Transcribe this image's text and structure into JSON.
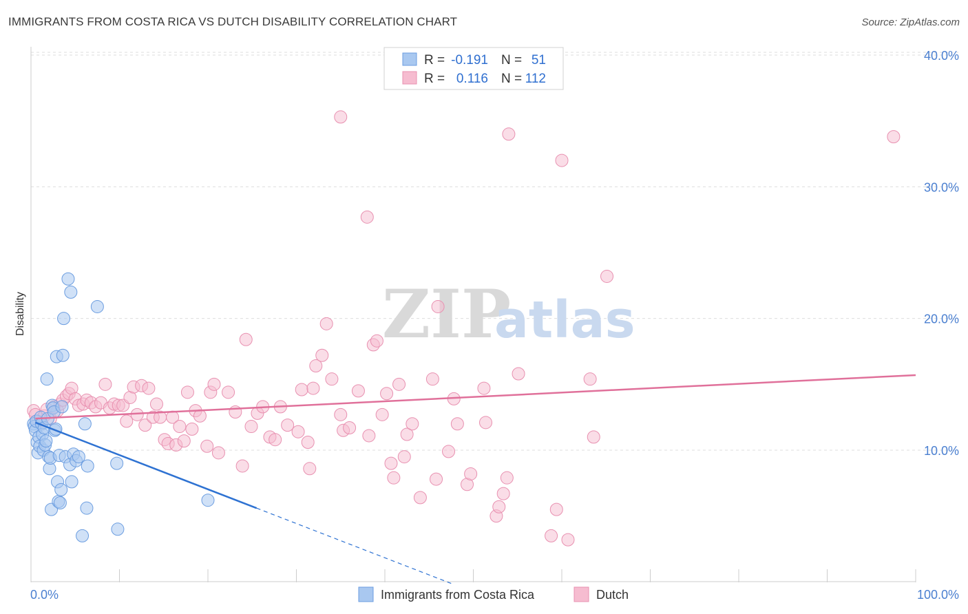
{
  "title": "IMMIGRANTS FROM COSTA RICA VS DUTCH DISABILITY CORRELATION CHART",
  "source": "Source: ZipAtlas.com",
  "watermark": {
    "zip": "ZIP",
    "atlas": "atlas"
  },
  "colors": {
    "blue_fill": "#a9c8f0",
    "blue_stroke": "#6b9de0",
    "blue_line": "#2e72d2",
    "pink_fill": "#f6bcd0",
    "pink_stroke": "#e890b0",
    "pink_line": "#e0709a",
    "tick_label": "#4a7fd0",
    "grid": "#dddddd"
  },
  "legend": {
    "rows": [
      {
        "r_label": "R =",
        "r_value": "-0.191",
        "n_label": "N =",
        "n_value": "51"
      },
      {
        "r_label": "R =",
        "r_value": "0.116",
        "n_label": "N =",
        "n_value": "112"
      }
    ]
  },
  "chart_data": {
    "type": "scatter",
    "xlabel": "",
    "ylabel": "Disability",
    "xlim": [
      0,
      100
    ],
    "ylim": [
      0,
      41
    ],
    "x_tick_labels": [
      "0.0%",
      "100.0%"
    ],
    "y_ticks": [
      10,
      20,
      30,
      40
    ],
    "y_tick_labels": [
      "10.0%",
      "20.0%",
      "30.0%",
      "40.0%"
    ],
    "grid": "horizontal dashed",
    "legend_position": "top-center",
    "series": [
      {
        "name": "Immigrants from Costa Rica",
        "trend": {
          "x0": 0.5,
          "y0": 12.1,
          "x1": 25.5,
          "y1": 5.6,
          "x_dash_end": 47.5
        },
        "points": [
          [
            0.3,
            12.0
          ],
          [
            0.4,
            11.8
          ],
          [
            0.5,
            11.5
          ],
          [
            0.6,
            12.2
          ],
          [
            0.7,
            10.6
          ],
          [
            0.8,
            9.8
          ],
          [
            0.9,
            11.0
          ],
          [
            1.0,
            10.3
          ],
          [
            1.1,
            12.5
          ],
          [
            1.2,
            12.0
          ],
          [
            1.3,
            11.2
          ],
          [
            1.4,
            10.0
          ],
          [
            1.5,
            11.7
          ],
          [
            1.6,
            10.4
          ],
          [
            1.7,
            10.7
          ],
          [
            1.8,
            15.4
          ],
          [
            1.9,
            12.4
          ],
          [
            2.0,
            9.5
          ],
          [
            2.1,
            8.6
          ],
          [
            2.2,
            9.4
          ],
          [
            2.3,
            5.5
          ],
          [
            2.4,
            13.4
          ],
          [
            2.5,
            13.2
          ],
          [
            2.6,
            12.9
          ],
          [
            2.7,
            11.5
          ],
          [
            2.8,
            11.6
          ],
          [
            2.9,
            17.1
          ],
          [
            3.0,
            7.6
          ],
          [
            3.1,
            6.1
          ],
          [
            3.2,
            9.6
          ],
          [
            3.3,
            6.0
          ],
          [
            3.4,
            7.0
          ],
          [
            3.5,
            13.3
          ],
          [
            3.6,
            17.2
          ],
          [
            3.7,
            20.0
          ],
          [
            3.9,
            9.5
          ],
          [
            4.2,
            23.0
          ],
          [
            4.4,
            8.9
          ],
          [
            4.5,
            22.0
          ],
          [
            4.6,
            7.6
          ],
          [
            4.8,
            9.7
          ],
          [
            5.1,
            9.2
          ],
          [
            5.4,
            9.5
          ],
          [
            5.8,
            3.5
          ],
          [
            6.1,
            12.0
          ],
          [
            6.3,
            5.6
          ],
          [
            6.4,
            8.8
          ],
          [
            7.5,
            20.9
          ],
          [
            9.7,
            9.0
          ],
          [
            9.8,
            4.0
          ],
          [
            20.0,
            6.2
          ]
        ]
      },
      {
        "name": "Dutch",
        "trend": {
          "x0": 0.5,
          "y0": 12.4,
          "x1": 100,
          "y1": 15.7
        },
        "points": [
          [
            0.3,
            13.0
          ],
          [
            0.5,
            12.7
          ],
          [
            0.8,
            12.2
          ],
          [
            1.2,
            12.0
          ],
          [
            1.5,
            12.6
          ],
          [
            1.8,
            13.1
          ],
          [
            2.2,
            12.4
          ],
          [
            2.6,
            13.3
          ],
          [
            3.0,
            13.0
          ],
          [
            3.3,
            13.5
          ],
          [
            3.6,
            13.8
          ],
          [
            4.0,
            14.1
          ],
          [
            4.3,
            14.3
          ],
          [
            4.6,
            14.7
          ],
          [
            5.0,
            13.9
          ],
          [
            5.4,
            13.4
          ],
          [
            5.9,
            13.5
          ],
          [
            6.3,
            13.8
          ],
          [
            6.8,
            13.6
          ],
          [
            7.3,
            13.3
          ],
          [
            7.9,
            13.6
          ],
          [
            8.4,
            15.0
          ],
          [
            8.9,
            13.2
          ],
          [
            9.4,
            13.5
          ],
          [
            9.9,
            13.4
          ],
          [
            10.4,
            13.4
          ],
          [
            10.8,
            12.2
          ],
          [
            11.2,
            14.0
          ],
          [
            11.6,
            14.8
          ],
          [
            12.0,
            12.7
          ],
          [
            12.5,
            14.9
          ],
          [
            12.9,
            11.9
          ],
          [
            13.3,
            14.7
          ],
          [
            13.8,
            12.5
          ],
          [
            14.2,
            13.5
          ],
          [
            14.6,
            12.5
          ],
          [
            15.1,
            10.8
          ],
          [
            15.5,
            10.5
          ],
          [
            16.0,
            12.5
          ],
          [
            16.4,
            10.4
          ],
          [
            16.8,
            11.8
          ],
          [
            17.3,
            10.7
          ],
          [
            17.7,
            14.4
          ],
          [
            18.2,
            11.6
          ],
          [
            18.6,
            13.0
          ],
          [
            19.1,
            12.6
          ],
          [
            19.9,
            10.3
          ],
          [
            20.3,
            14.4
          ],
          [
            20.7,
            15.0
          ],
          [
            21.2,
            9.8
          ],
          [
            22.3,
            14.4
          ],
          [
            23.1,
            12.9
          ],
          [
            23.9,
            8.8
          ],
          [
            24.3,
            18.4
          ],
          [
            24.9,
            11.8
          ],
          [
            25.6,
            12.8
          ],
          [
            26.2,
            13.3
          ],
          [
            27.0,
            11.0
          ],
          [
            27.6,
            10.8
          ],
          [
            28.2,
            13.3
          ],
          [
            29.0,
            11.9
          ],
          [
            30.2,
            11.4
          ],
          [
            30.6,
            14.6
          ],
          [
            31.3,
            10.6
          ],
          [
            31.5,
            8.6
          ],
          [
            31.9,
            14.7
          ],
          [
            32.2,
            16.4
          ],
          [
            32.9,
            17.2
          ],
          [
            33.4,
            19.6
          ],
          [
            34.0,
            15.4
          ],
          [
            35.0,
            12.7
          ],
          [
            35.3,
            11.5
          ],
          [
            36.0,
            11.7
          ],
          [
            37.0,
            14.5
          ],
          [
            38.2,
            11.1
          ],
          [
            38.7,
            18.0
          ],
          [
            39.1,
            18.3
          ],
          [
            39.7,
            12.7
          ],
          [
            40.2,
            14.3
          ],
          [
            40.7,
            9.0
          ],
          [
            41.0,
            7.9
          ],
          [
            41.6,
            15.0
          ],
          [
            42.2,
            9.5
          ],
          [
            42.5,
            11.2
          ],
          [
            43.1,
            12.0
          ],
          [
            44.0,
            6.4
          ],
          [
            45.4,
            15.4
          ],
          [
            45.8,
            7.8
          ],
          [
            47.2,
            9.9
          ],
          [
            47.8,
            13.9
          ],
          [
            48.2,
            12.0
          ],
          [
            49.3,
            7.4
          ],
          [
            49.7,
            8.2
          ],
          [
            51.4,
            12.1
          ],
          [
            51.2,
            14.7
          ],
          [
            52.6,
            5.0
          ],
          [
            52.9,
            5.7
          ],
          [
            53.4,
            6.7
          ],
          [
            53.8,
            7.9
          ],
          [
            55.1,
            15.8
          ],
          [
            58.8,
            3.5
          ],
          [
            59.4,
            5.5
          ],
          [
            60.0,
            32.0
          ],
          [
            60.7,
            3.2
          ],
          [
            63.2,
            15.4
          ],
          [
            63.6,
            11.0
          ],
          [
            65.1,
            23.2
          ],
          [
            35.0,
            35.3
          ],
          [
            38.0,
            27.7
          ],
          [
            46.0,
            20.9
          ],
          [
            54.0,
            34.0
          ],
          [
            97.5,
            33.8
          ]
        ]
      }
    ]
  },
  "bottom_legend": [
    {
      "label": "Immigrants from Costa Rica"
    },
    {
      "label": "Dutch"
    }
  ]
}
